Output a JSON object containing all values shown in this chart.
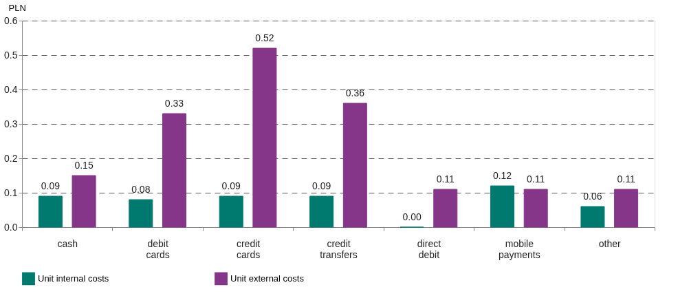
{
  "chart_data": {
    "type": "bar",
    "ylabel": "PLN",
    "categories": [
      "cash",
      "debit cards",
      "credit cards",
      "credit transfers",
      "direct debit",
      "mobile payments",
      "other"
    ],
    "series": [
      {
        "name": "Unit internal costs",
        "color": "#007a6e",
        "values": [
          0.09,
          0.08,
          0.09,
          0.09,
          0.0,
          0.12,
          0.06
        ],
        "value_labels": [
          "0.09",
          "0.08",
          "0.09",
          "0.09",
          "0.00",
          "0.12",
          "0.06"
        ]
      },
      {
        "name": "Unit external costs",
        "color": "#853689",
        "values": [
          0.15,
          0.33,
          0.52,
          0.36,
          0.11,
          0.11,
          0.11
        ],
        "value_labels": [
          "0.15",
          "0.33",
          "0.52",
          "0.36",
          "0.11",
          "0.11",
          "0.11"
        ]
      }
    ],
    "ylim": [
      0,
      0.6
    ],
    "yticks": [
      {
        "value": 0,
        "label": "0.0"
      },
      {
        "value": 0.1,
        "label": "0.1"
      },
      {
        "value": 0.2,
        "label": "0.2"
      },
      {
        "value": 0.3,
        "label": "0.3"
      },
      {
        "value": 0.4,
        "label": "0.4"
      },
      {
        "value": 0.5,
        "label": "0.5"
      },
      {
        "value": 0.6,
        "label": "0.6"
      }
    ],
    "grid": "y",
    "legend": "bottom"
  }
}
